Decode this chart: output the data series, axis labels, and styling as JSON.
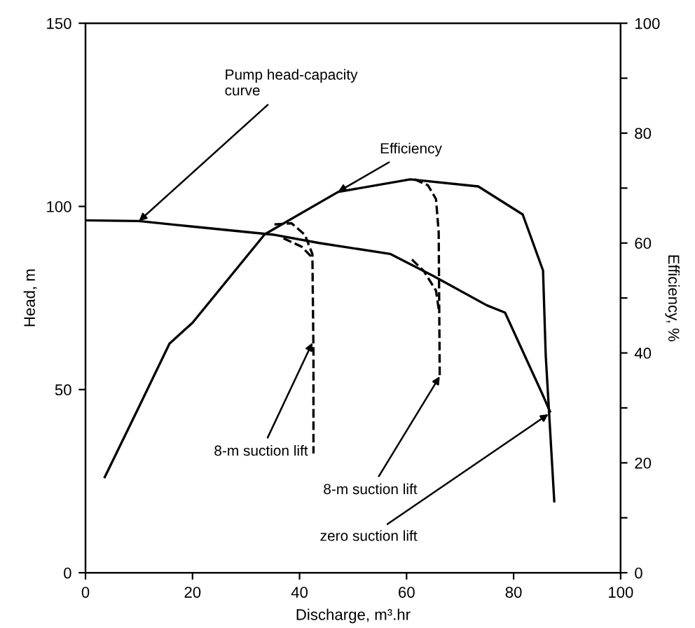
{
  "chart_data": {
    "type": "line",
    "xlabel": "Discharge, m³.hr",
    "ylabel": "Head, m",
    "y2label": "Efficiency, %",
    "xlim": [
      0,
      100
    ],
    "xticks": [
      0,
      20,
      40,
      60,
      80,
      100
    ],
    "ylim": [
      0,
      150
    ],
    "yticks": [
      0,
      50,
      100,
      150
    ],
    "y2lim": [
      0,
      100
    ],
    "y2ticks": [
      0,
      {
        "value": 10,
        "label": null
      },
      20,
      {
        "value": 30,
        "label": null
      },
      40,
      {
        "value": 50,
        "label": null
      },
      60,
      {
        "value": 70,
        "label": null
      },
      80,
      {
        "value": 90,
        "label": null
      },
      100
    ],
    "grid": false,
    "marker": "none",
    "series": [
      {
        "color": "#000000",
        "line_style": "solid",
        "x": [
          0,
          10,
          20,
          35,
          43.7,
          57,
          65,
          75,
          78.4,
          85.3,
          86.8
        ],
        "values": [
          96.2,
          96,
          94.5,
          92.3,
          90,
          87,
          81,
          73,
          71,
          49,
          44
        ]
      },
      {
        "color": "#000000",
        "line_style": "solid",
        "axis": "y2",
        "x": [
          3.6,
          9.9,
          15.7,
          20,
          33.5,
          47.2,
          60.7,
          73.4,
          81.7,
          85.5,
          86,
          87.6
        ],
        "values": [
          17.4,
          30,
          41.7,
          45.5,
          61.6,
          69.3,
          71.6,
          70.3,
          65.2,
          55,
          39.6,
          13
        ]
      },
      {
        "color": "#000000",
        "line_style": "dashed",
        "axis": "y2",
        "x": [
          35.3,
          38.5,
          41,
          42.4,
          42.6,
          42.6
        ],
        "values": [
          63.4,
          63.6,
          61.5,
          58,
          40,
          21.7
        ]
      },
      {
        "color": "#000000",
        "line_style": "dashed",
        "x": [
          37,
          40.4,
          42.4
        ],
        "values": [
          91.3,
          89,
          86
        ]
      },
      {
        "color": "#000000",
        "line_style": "dashed",
        "axis": "y2",
        "x": [
          61.5,
          64,
          65.5,
          66,
          66.2
        ],
        "values": [
          71.6,
          70.5,
          68,
          62,
          35.3
        ]
      },
      {
        "color": "#000000",
        "line_style": "dashed",
        "x": [
          61,
          63.2,
          65.5,
          66
        ],
        "values": [
          85.5,
          82.4,
          77,
          72
        ]
      }
    ],
    "annotations": [
      {
        "text": "Pump head-capacity\ncurve",
        "x": 10,
        "y": 96
      },
      {
        "text": "Efficiency",
        "x": 47.2,
        "y": 104
      },
      {
        "text": "8-m suction lift",
        "x": 42.4,
        "y": 62.8
      },
      {
        "text": "8-m suction lift",
        "x": 66.2,
        "y": 53.6
      },
      {
        "text": "zero suction lift",
        "x": 86.5,
        "y": 43.3
      }
    ]
  }
}
